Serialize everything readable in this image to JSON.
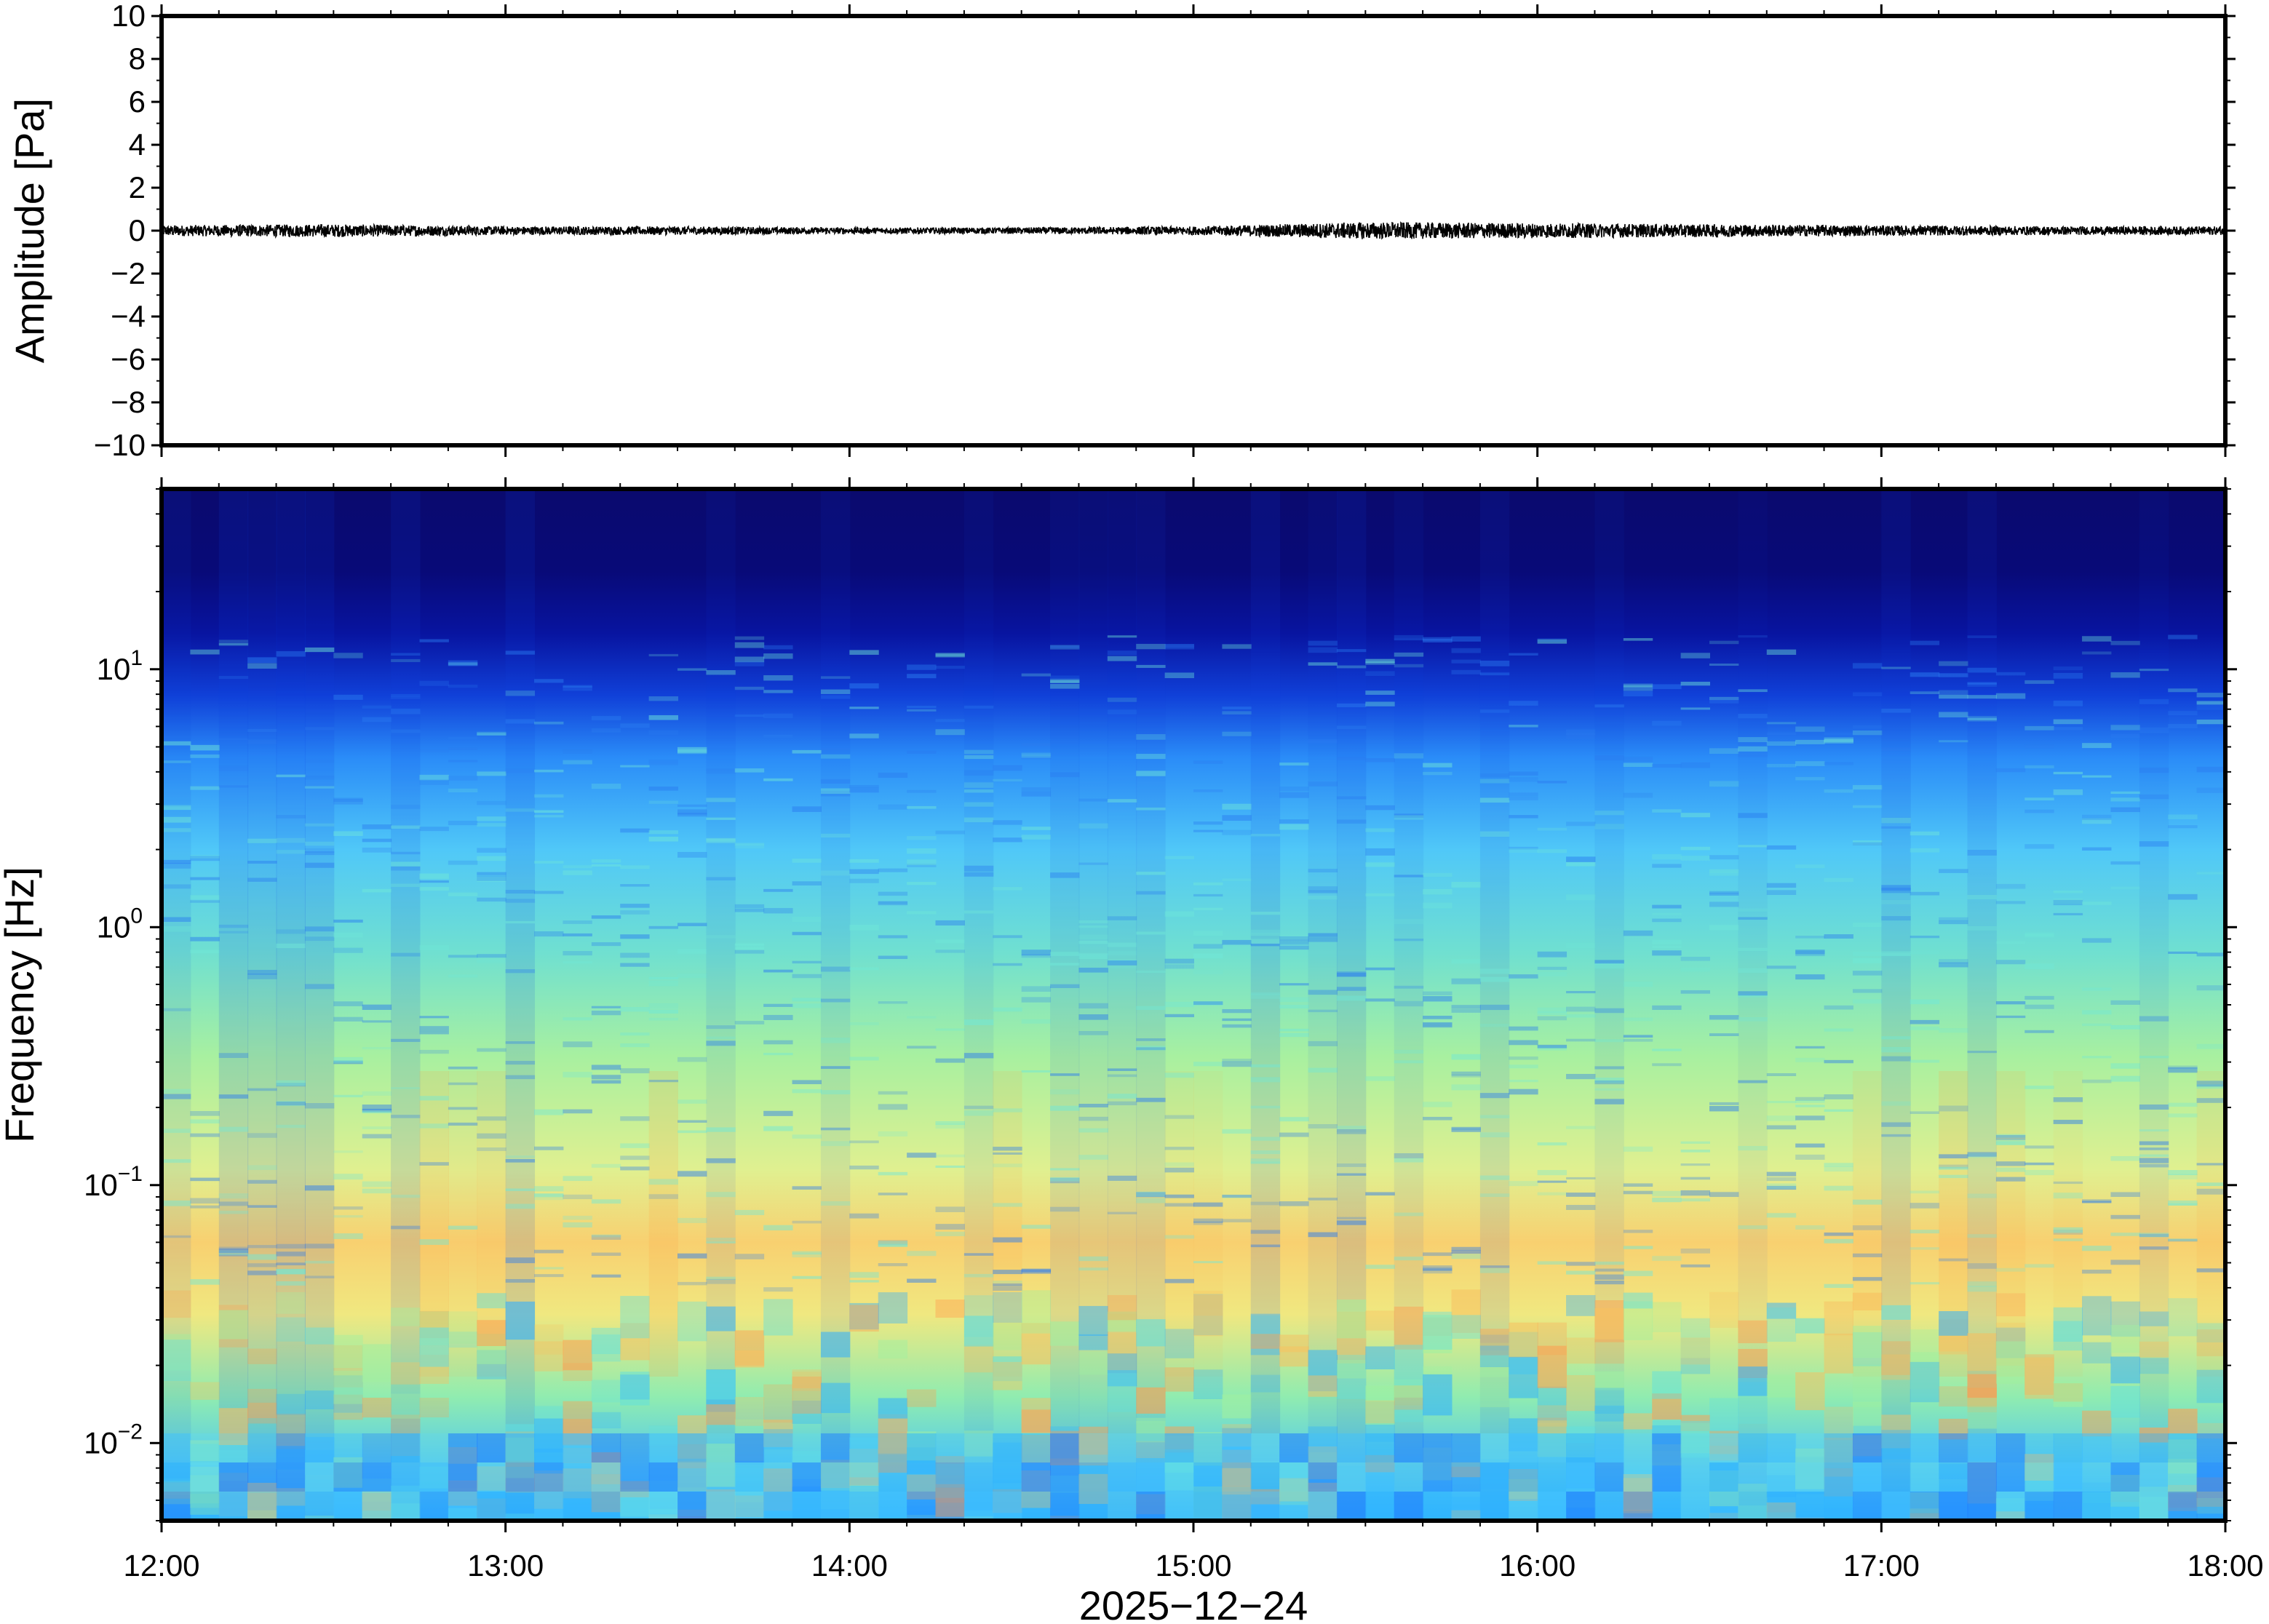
{
  "chart_data": [
    {
      "type": "line",
      "panel": "waveform",
      "ylabel": "Amplitude [Pa]",
      "ylim": [
        -10,
        10
      ],
      "yticks": [
        10,
        8,
        6,
        4,
        2,
        0,
        -2,
        -4,
        -6,
        -8,
        -10
      ],
      "ytick_labels": [
        "10",
        "8",
        "6",
        "4",
        "2",
        "0",
        "−2",
        "−4",
        "−6",
        "−8",
        "−10"
      ],
      "series": [
        {
          "values_note_hours": [
            12.0,
            12.5,
            13.0,
            13.5,
            14.0,
            14.5,
            15.0,
            15.5,
            16.0,
            16.5,
            17.0,
            17.5,
            18.0
          ],
          "envelope_pa": [
            0.25,
            0.3,
            0.2,
            0.2,
            0.15,
            0.15,
            0.2,
            0.4,
            0.35,
            0.3,
            0.25,
            0.2,
            0.2
          ]
        }
      ],
      "line_color": "#000000",
      "grid": false
    },
    {
      "type": "heatmap",
      "panel": "spectrogram",
      "ylabel": "Frequency [Hz]",
      "yscale": "log",
      "ylim": [
        0.005,
        50
      ],
      "yticks": [
        0.01,
        0.1,
        1,
        10
      ],
      "ytick_labels": [
        {
          "base": "10",
          "exp": "−2"
        },
        {
          "base": "10",
          "exp": "−1"
        },
        {
          "base": "10",
          "exp": "0"
        },
        {
          "base": "10",
          "exp": "1"
        }
      ],
      "colormap": "jet",
      "colormap_stops": [
        "#0a0a6e",
        "#0000c8",
        "#2060ff",
        "#30b0ff",
        "#60e0e0",
        "#a0f0a0",
        "#f0f080",
        "#ffc060",
        "#ff8040"
      ],
      "grid": false
    }
  ],
  "xaxis": {
    "xlabel": "2025−12−24",
    "xlim": [
      "12:00",
      "18:00"
    ],
    "tick_labels": [
      "12:00",
      "13:00",
      "14:00",
      "15:00",
      "16:00",
      "17:00",
      "18:00"
    ]
  }
}
